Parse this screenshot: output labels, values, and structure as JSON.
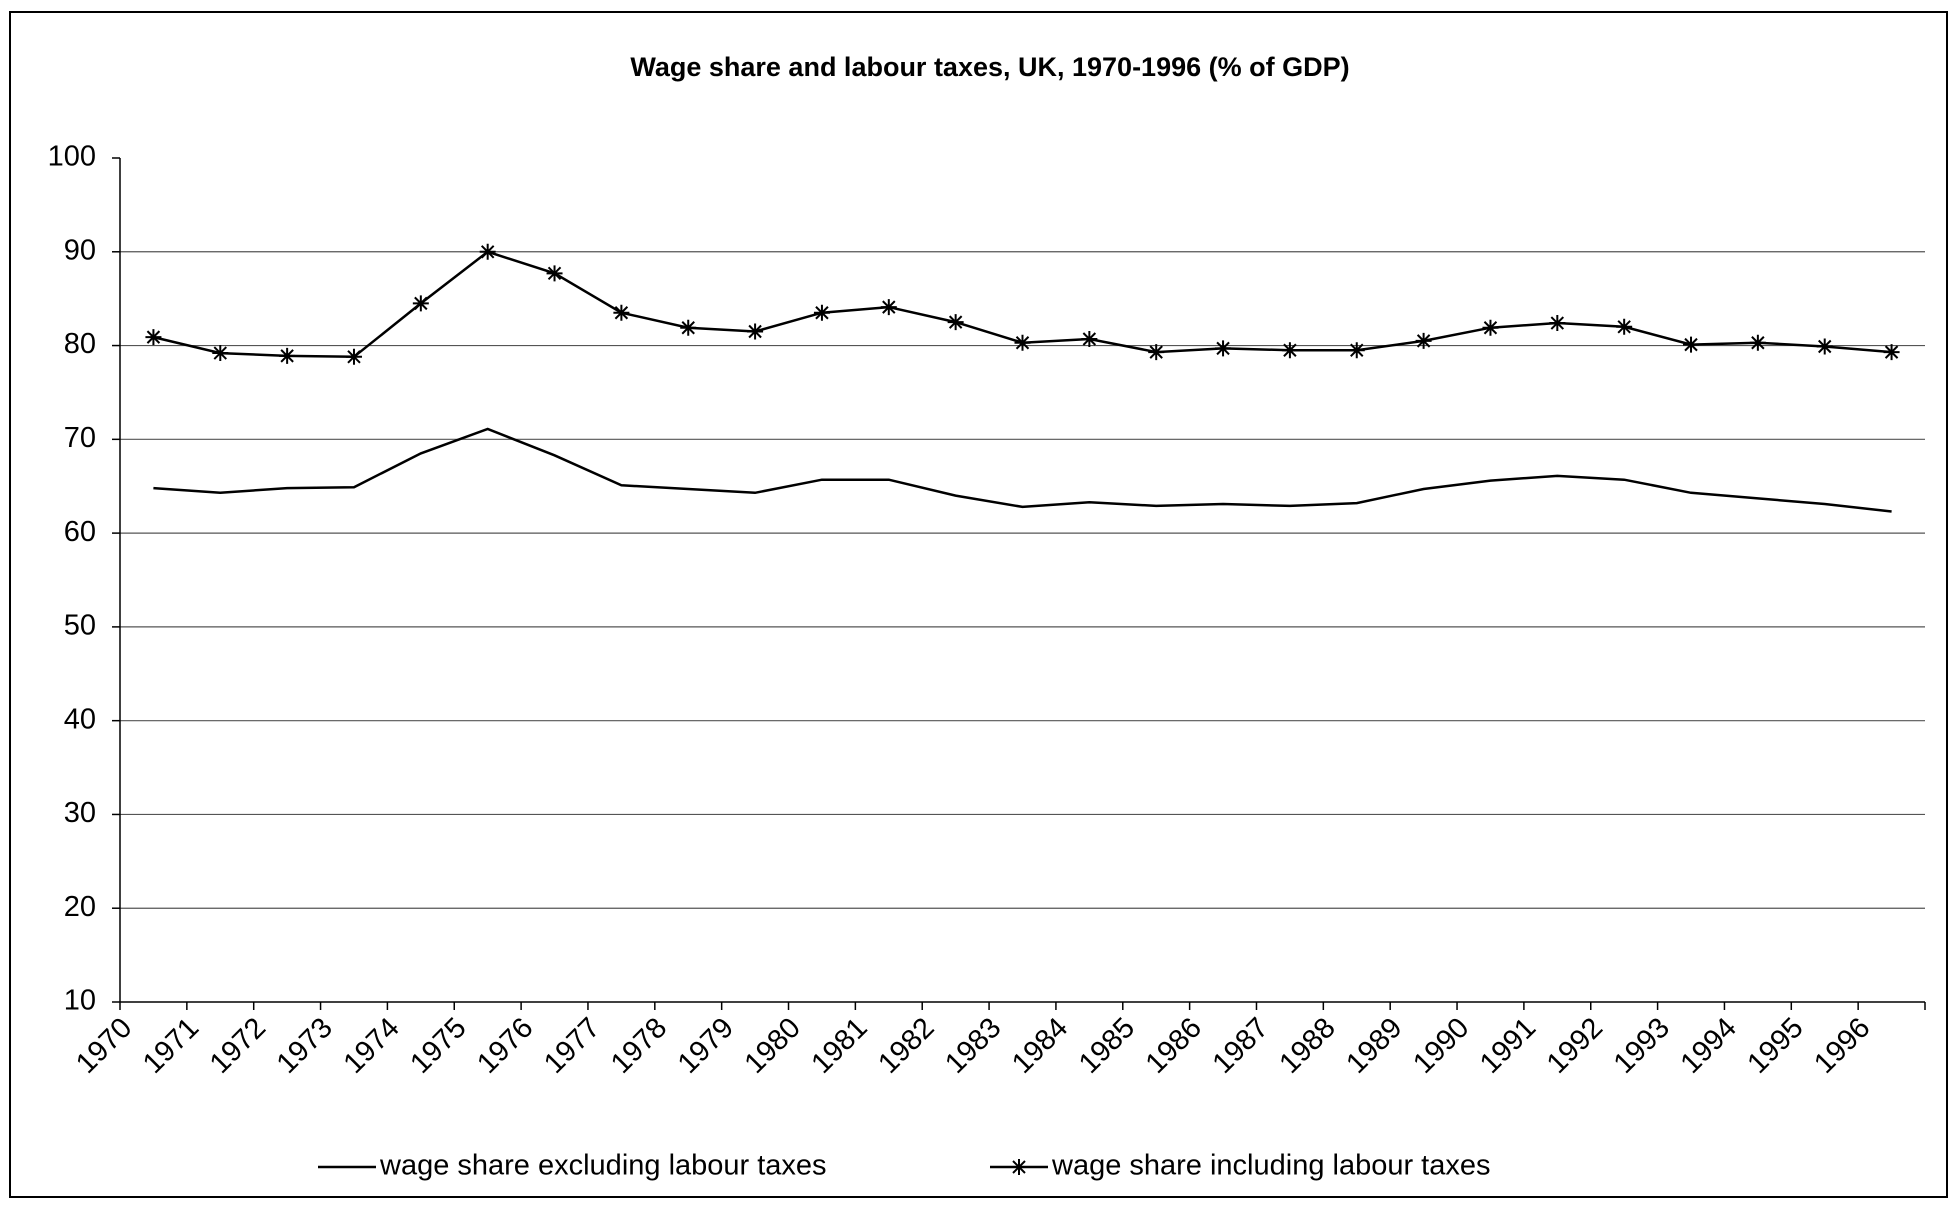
{
  "chart_data": {
    "type": "line",
    "title": "Wage share and labour taxes, UK, 1970-1996 (% of GDP)",
    "categories": [
      "1970",
      "1971",
      "1972",
      "1973",
      "1974",
      "1975",
      "1976",
      "1977",
      "1978",
      "1979",
      "1980",
      "1981",
      "1982",
      "1983",
      "1984",
      "1985",
      "1986",
      "1987",
      "1988",
      "1989",
      "1990",
      "1991",
      "1992",
      "1993",
      "1994",
      "1995",
      "1996"
    ],
    "series": [
      {
        "name": "wage share excluding labour taxes",
        "color": "#000000",
        "marker": "none",
        "values": [
          64.8,
          64.3,
          64.8,
          64.9,
          68.5,
          71.1,
          68.3,
          65.1,
          64.7,
          64.3,
          65.7,
          65.7,
          64.0,
          62.8,
          63.3,
          62.9,
          63.1,
          62.9,
          63.2,
          64.7,
          65.6,
          66.1,
          65.7,
          64.3,
          63.7,
          63.1,
          62.3
        ]
      },
      {
        "name": "wage share including labour taxes",
        "color": "#000000",
        "marker": "asterisk",
        "values": [
          80.9,
          79.2,
          78.9,
          78.8,
          84.5,
          90.0,
          87.7,
          83.5,
          81.9,
          81.5,
          83.5,
          84.1,
          82.5,
          80.3,
          80.7,
          79.3,
          79.7,
          79.5,
          79.5,
          80.5,
          81.9,
          82.4,
          82.0,
          80.1,
          80.3,
          79.9,
          79.3
        ]
      }
    ],
    "ylim": [
      10,
      100
    ],
    "yticks": [
      10,
      20,
      30,
      40,
      50,
      60,
      70,
      80,
      90,
      100
    ],
    "grid": true,
    "legend": "bottom"
  }
}
